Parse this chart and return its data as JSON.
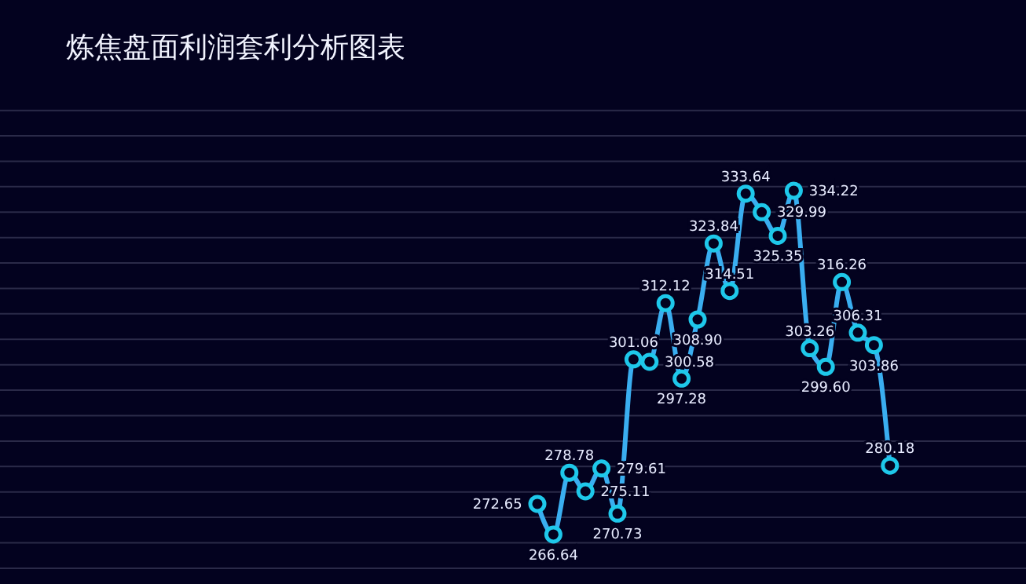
{
  "chart_data": {
    "type": "line",
    "title": "炼焦盘面利润套利分析图表",
    "categories": [
      null,
      null,
      null,
      null,
      null,
      null,
      null,
      null,
      null,
      null,
      null,
      null,
      null,
      null,
      null,
      null,
      null,
      null,
      null,
      null,
      null,
      null,
      null,
      null,
      null,
      null,
      null,
      null,
      null,
      null,
      null,
      null,
      null,
      null,
      null,
      null,
      null,
      null,
      null,
      null,
      null,
      null,
      null,
      null,
      null,
      null,
      null,
      null,
      null,
      null,
      null,
      null,
      null,
      null,
      null,
      null,
      null,
      null,
      null,
      null,
      null,
      null,
      null,
      null
    ],
    "series": [
      {
        "color": "#3aaef0",
        "values": [
          null,
          null,
          null,
          null,
          null,
          null,
          null,
          null,
          null,
          null,
          null,
          null,
          null,
          null,
          null,
          null,
          null,
          null,
          null,
          null,
          null,
          null,
          null,
          null,
          null,
          null,
          null,
          null,
          null,
          null,
          null,
          null,
          null,
          272.65,
          266.64,
          278.78,
          275.11,
          279.61,
          270.73,
          301.06,
          300.58,
          312.12,
          297.28,
          308.9,
          323.84,
          314.51,
          333.64,
          329.99,
          325.35,
          334.22,
          303.26,
          299.6,
          316.26,
          306.31,
          303.86,
          280.18,
          null,
          null,
          null,
          null,
          null,
          null,
          null,
          null
        ],
        "value_labels": [
          null,
          null,
          null,
          null,
          null,
          null,
          null,
          null,
          null,
          null,
          null,
          null,
          null,
          null,
          null,
          null,
          null,
          null,
          null,
          null,
          null,
          null,
          null,
          null,
          null,
          null,
          null,
          null,
          null,
          null,
          null,
          null,
          null,
          "272.65",
          "266.64",
          "278.78",
          "275.11",
          "279.61",
          "270.73",
          "301.06",
          "300.58",
          "312.12",
          "297.28",
          "308.90",
          "323.84",
          "314.51",
          "333.64",
          "329.99",
          "325.35",
          "334.22",
          "303.26",
          "299.60",
          "316.26",
          "306.31",
          "303.86",
          "280.18",
          null,
          null,
          null,
          null,
          null,
          null,
          null,
          null
        ]
      }
    ],
    "ylim": [
      256.9,
      371.7
    ],
    "yticks": [
      {
        "value": 260,
        "label": null
      },
      {
        "value": 265,
        "label": null
      },
      {
        "value": 270,
        "label": null
      },
      {
        "value": 275,
        "label": null
      },
      {
        "value": 280,
        "label": null
      },
      {
        "value": 285,
        "label": null
      },
      {
        "value": 290,
        "label": null
      },
      {
        "value": 295,
        "label": null
      },
      {
        "value": 300,
        "label": null
      },
      {
        "value": 305,
        "label": null
      },
      {
        "value": 310,
        "label": null
      },
      {
        "value": 315,
        "label": null
      },
      {
        "value": 320,
        "label": null
      },
      {
        "value": 325,
        "label": null
      },
      {
        "value": 330,
        "label": null
      },
      {
        "value": 335,
        "label": null
      },
      {
        "value": 340,
        "label": null
      },
      {
        "value": 345,
        "label": null
      },
      {
        "value": 350,
        "label": null
      }
    ],
    "grid": "y",
    "marker": "circle",
    "line_style": "solid"
  }
}
